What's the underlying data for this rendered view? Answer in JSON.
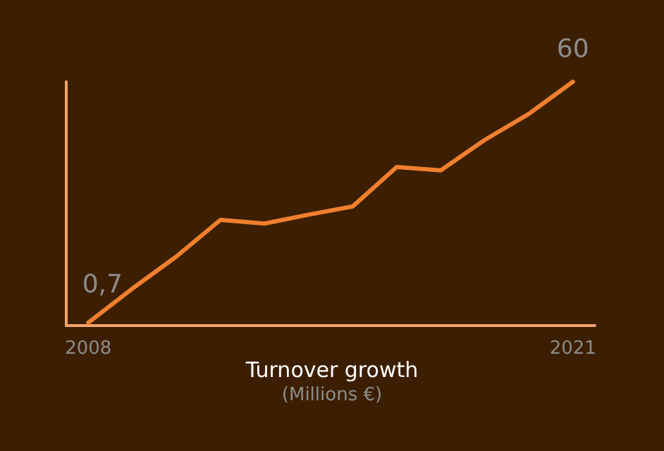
{
  "chart_data": {
    "type": "line",
    "title": "Turnover growth",
    "subtitle": "(Millions €)",
    "categories": [
      "2008",
      null,
      null,
      null,
      null,
      null,
      null,
      null,
      null,
      null,
      null,
      "2021"
    ],
    "series": [
      {
        "color": "#f07f2e",
        "values": [
          0.7,
          9.1,
          17.0,
          26.0,
          25.1,
          27.3,
          29.3,
          39.0,
          38.2,
          45.7,
          52.1,
          60
        ],
        "value_labels": [
          "0,7",
          null,
          null,
          null,
          null,
          null,
          null,
          null,
          null,
          null,
          null,
          "60"
        ]
      }
    ],
    "grid": false,
    "marker": "none",
    "line_style": "solid",
    "tick_labels": "x"
  }
}
